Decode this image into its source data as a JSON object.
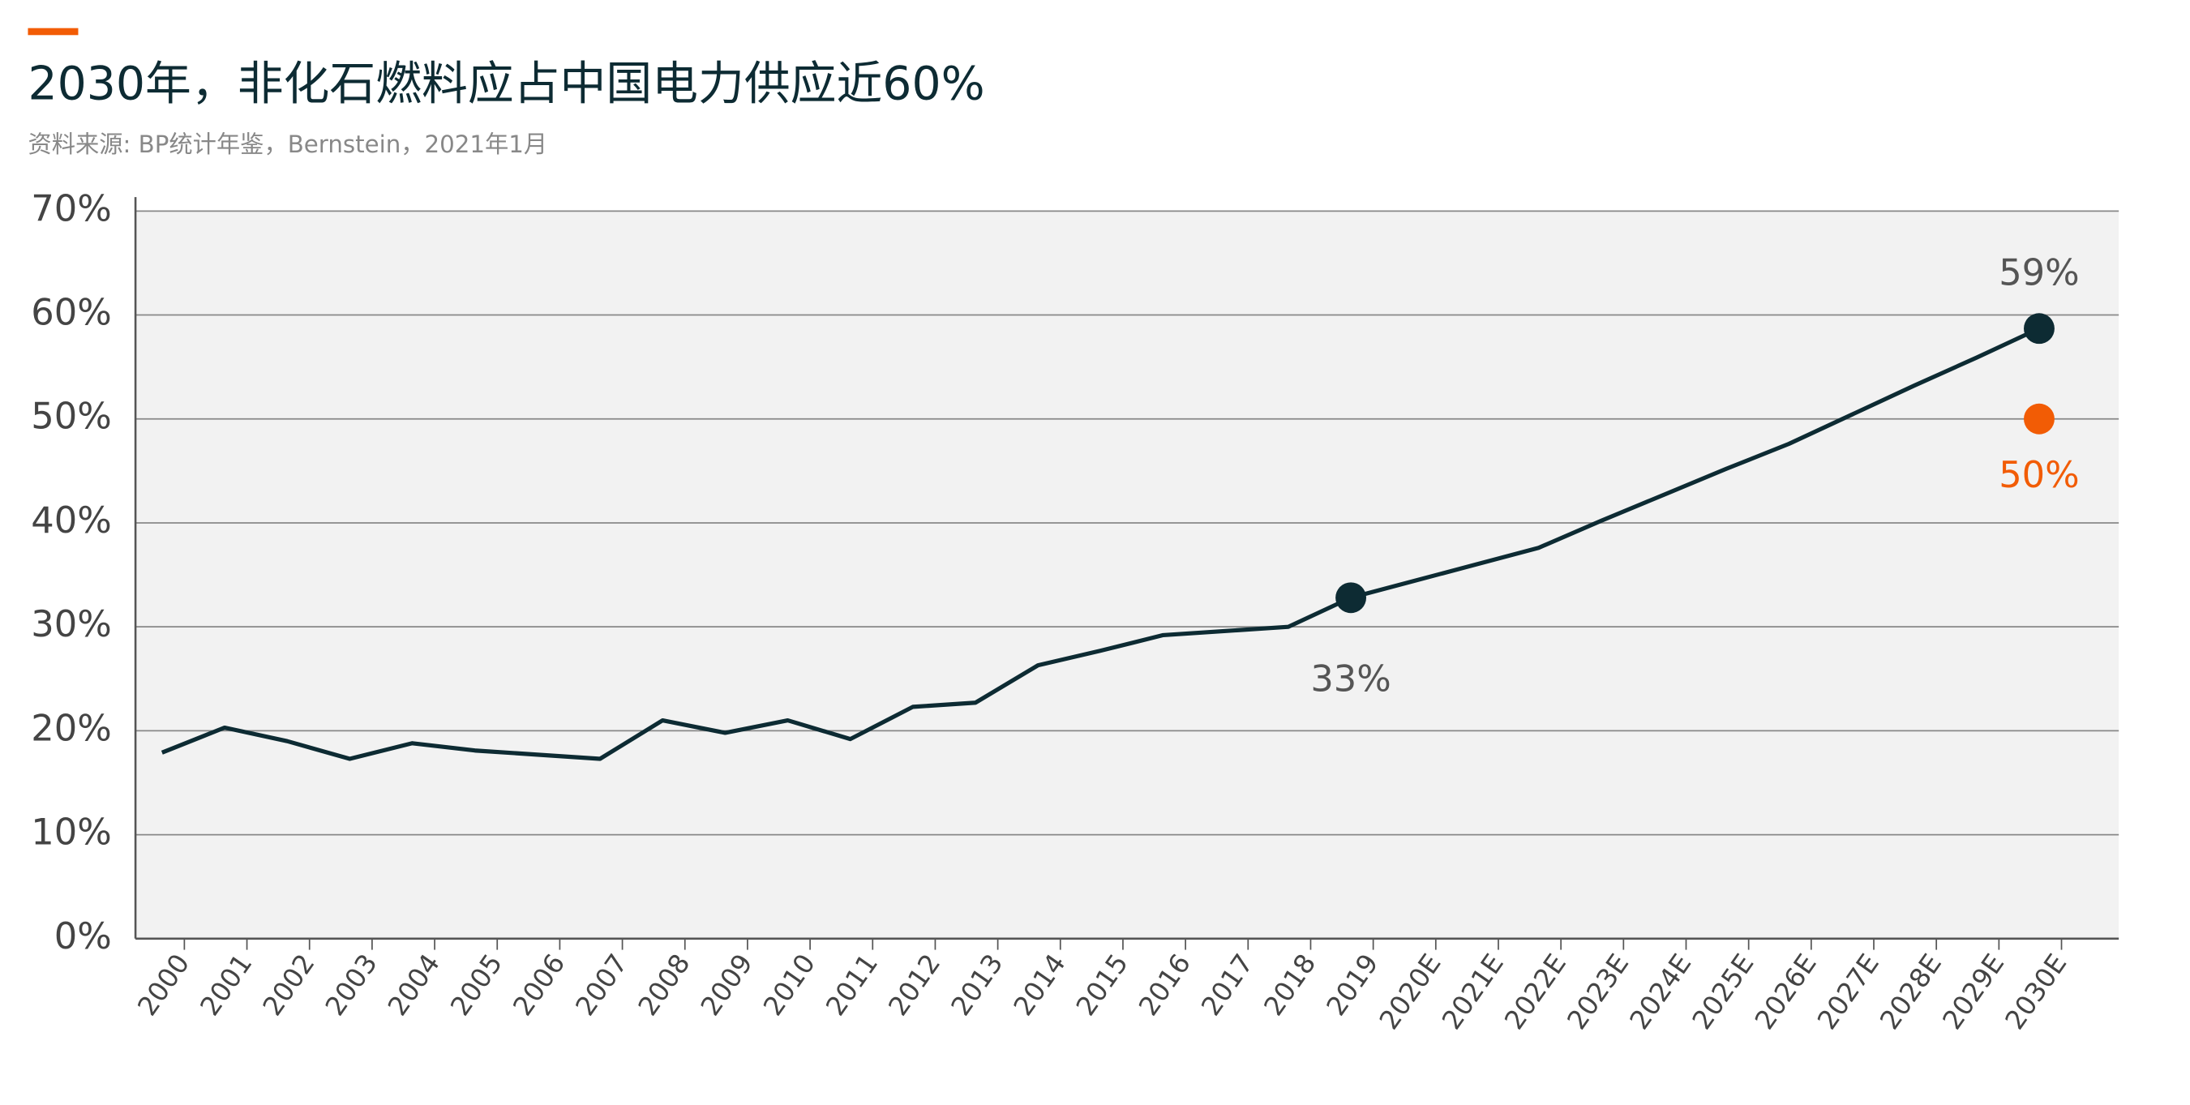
{
  "chart_data": {
    "type": "line",
    "title": "2030年，非化石燃料应占中国电力供应近60%",
    "subtitle": "资料来源: BP统计年鉴，Bernstein，2021年1月",
    "categories": [
      "2000",
      "2001",
      "2002",
      "2003",
      "2004",
      "2005",
      "2006",
      "2007",
      "2008",
      "2009",
      "2010",
      "2011",
      "2012",
      "2013",
      "2014",
      "2015",
      "2016",
      "2017",
      "2018",
      "2019",
      "2020E",
      "2021E",
      "2022E",
      "2023E",
      "2024E",
      "2025E",
      "2026E",
      "2027E",
      "2028E",
      "2029E",
      "2030E"
    ],
    "series": [
      {
        "color": "#0d2b33",
        "values": [
          17.9,
          20.3,
          19.0,
          17.3,
          18.8,
          18.1,
          17.7,
          17.3,
          21.0,
          19.8,
          21.0,
          19.2,
          22.3,
          22.7,
          26.3,
          27.7,
          29.2,
          29.6,
          30.0,
          32.8,
          34.4,
          36.0,
          37.6,
          40.2,
          42.7,
          45.2,
          47.6,
          50.4,
          53.2,
          55.9,
          58.7
        ],
        "value_labels": [
          null,
          null,
          null,
          null,
          null,
          null,
          null,
          null,
          null,
          null,
          null,
          null,
          null,
          null,
          null,
          null,
          null,
          null,
          null,
          "33%",
          null,
          null,
          null,
          null,
          null,
          null,
          null,
          null,
          null,
          null,
          "59%"
        ]
      },
      {
        "color": "#f25c05",
        "values": [
          null,
          null,
          null,
          null,
          null,
          null,
          null,
          null,
          null,
          null,
          null,
          null,
          null,
          null,
          null,
          null,
          null,
          null,
          null,
          null,
          null,
          null,
          null,
          null,
          null,
          null,
          null,
          null,
          null,
          null,
          50
        ],
        "value_labels": [
          null,
          null,
          null,
          null,
          null,
          null,
          null,
          null,
          null,
          null,
          null,
          null,
          null,
          null,
          null,
          null,
          null,
          null,
          null,
          null,
          null,
          null,
          null,
          null,
          null,
          null,
          null,
          null,
          null,
          null,
          "50%"
        ]
      }
    ],
    "ylim": [
      0,
      70
    ],
    "yticks": [
      {
        "value": 0,
        "label": "0%"
      },
      {
        "value": 10,
        "label": "10%"
      },
      {
        "value": 20,
        "label": "20%"
      },
      {
        "value": 30,
        "label": "30%"
      },
      {
        "value": 40,
        "label": "40%"
      },
      {
        "value": 50,
        "label": "50%"
      },
      {
        "value": 60,
        "label": "60%"
      },
      {
        "value": 70,
        "label": "70%"
      }
    ],
    "grid": true
  }
}
